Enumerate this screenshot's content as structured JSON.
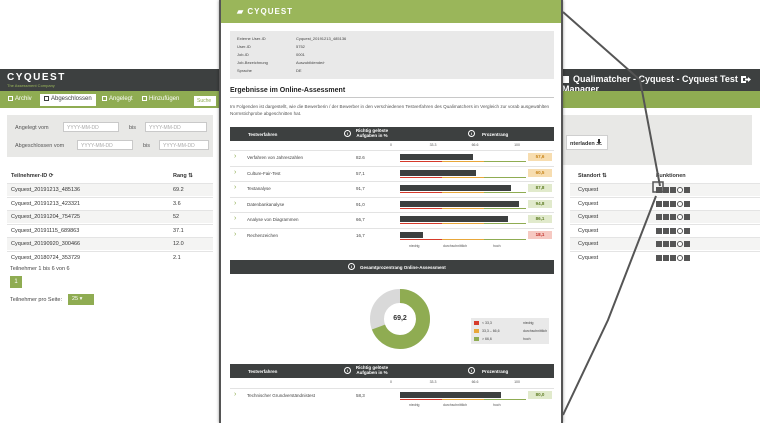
{
  "app": {
    "logo": "CYQUEST",
    "logo_sub": "The Assessment Company",
    "title": "Qualimatcher - Cyquest - Cyquest Test Manager",
    "tabs": [
      {
        "label": "Archiv"
      },
      {
        "label": "Abgeschlossen"
      },
      {
        "label": "Angelegt"
      },
      {
        "label": "Hinzufügen"
      }
    ],
    "search_tab": "Suche",
    "filter": {
      "created_label": "Angelegt vom",
      "completed_label": "Abgeschlossen vom",
      "to_label": "bis",
      "date_placeholder": "YYYY-MM-DD"
    },
    "export_label": "nterladen",
    "columns": {
      "id": "Teilnehmer-ID",
      "rank": "Rang",
      "location": "Standort",
      "functions": "Funktionen"
    },
    "rows": [
      {
        "id": "Cyquest_20191213_485136",
        "rank": "69.2",
        "location": "Cyquest"
      },
      {
        "id": "Cyquest_20191213_423321",
        "rank": "3.6",
        "location": "Cyquest"
      },
      {
        "id": "Cyquest_20191204_754725",
        "rank": "52",
        "location": "Cyquest"
      },
      {
        "id": "Cyquest_20191115_689863",
        "rank": "37.1",
        "location": "Cyquest"
      },
      {
        "id": "Cyquest_20190920_300466",
        "rank": "12.0",
        "location": "Cyquest"
      },
      {
        "id": "Cyquest_20180724_353729",
        "rank": "2.1",
        "location": "Cyquest"
      }
    ],
    "footer_count": "Teilnehmer 1 bis 6 von 6",
    "page": "1",
    "per_page_label": "Teilnehmer pro Seite:",
    "per_page_value": "25"
  },
  "report": {
    "logo": "CYQUEST",
    "meta": [
      {
        "key": "Externe User-ID",
        "value": "Cyquest_20191213_485136"
      },
      {
        "key": "User-ID",
        "value": "5752"
      },
      {
        "key": "Job-ID",
        "value": "0001"
      },
      {
        "key": "Job-Bezeichnung",
        "value": "Auszubildende/r"
      },
      {
        "key": "Sprache",
        "value": "DE"
      }
    ],
    "title": "Ergebnisse im Online-Assessment",
    "intro": "Im Folgenden ist dargestellt, wie die Bewerberin / der Bewerber in den verschiedenen Testverfahren des Qualimatchers im Vergleich zur vorab ausgewählten Normstichprobe abgeschnitten hat.",
    "header": {
      "col1": "Testverfahren",
      "col2": "Richtig gelöste Aufgaben in %",
      "col3": "Prozentrang"
    },
    "axis_ticks": [
      "0",
      "33.3",
      "66.6",
      "100"
    ],
    "zone_labels": [
      "niedrig",
      "durchschnittlich",
      "hoch"
    ],
    "tests": [
      {
        "name": "Verfahren von Jahreszahlen",
        "pct": "82.6",
        "rank": 57.6,
        "rank_label": "57,6"
      },
      {
        "name": "Culture-Fair-Test",
        "pct": "57,1",
        "rank": 60.5,
        "rank_label": "60,5"
      },
      {
        "name": "Textanalyse",
        "pct": "91,7",
        "rank": 87.8,
        "rank_label": "87,8"
      },
      {
        "name": "Datenbankanalyse",
        "pct": "91,0",
        "rank": 94.8,
        "rank_label": "94,8"
      },
      {
        "name": "Analyse von Diagrammen",
        "pct": "66,7",
        "rank": 86.1,
        "rank_label": "86,1"
      },
      {
        "name": "Rechenzeichen",
        "pct": "16,7",
        "rank": 18.1,
        "rank_label": "18,1"
      }
    ],
    "overall_label": "Gesamtprozentrang Online-Assessment",
    "overall_value": 69.2,
    "overall_value_label": "69,2",
    "legend": [
      {
        "range": "< 33,3",
        "label": "niedrig",
        "color": "#d63a2a"
      },
      {
        "range": "33,3 – 66,6",
        "label": "durchschnittlich",
        "color": "#e8a73a"
      },
      {
        "range": "> 66,6",
        "label": "hoch",
        "color": "#8fac52"
      }
    ],
    "bottom_header": {
      "col1": "Testverfahren",
      "col2": "Richtig gelöste Aufgaben in %",
      "col3": "Prozentrang"
    },
    "bottom_axis_ticks": [
      "0",
      "33.3",
      "66.6",
      "100"
    ],
    "bottom_test": {
      "name": "Technischer Grundverständnistest",
      "pct": "58,3",
      "rank": 80.0,
      "rank_label": "80,0"
    },
    "bottom_zone_labels": [
      "niedrig",
      "durchschnittlich",
      "hoch"
    ]
  },
  "colors": {
    "green": "#8fac52",
    "dark": "#3d4040",
    "red": "#d63a2a",
    "orange": "#e8a73a"
  }
}
